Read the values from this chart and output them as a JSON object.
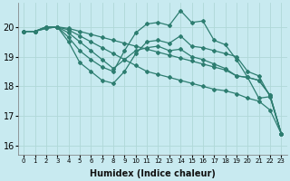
{
  "xlabel": "Humidex (Indice chaleur)",
  "ylabel": "",
  "bg_color": "#c8eaf0",
  "line_color": "#2d7d70",
  "grid_color": "#b0d8d8",
  "xlim": [
    -0.5,
    23.5
  ],
  "ylim": [
    15.7,
    20.8
  ],
  "xticks": [
    0,
    1,
    2,
    3,
    4,
    5,
    6,
    7,
    8,
    9,
    10,
    11,
    12,
    13,
    14,
    15,
    16,
    17,
    18,
    19,
    20,
    21,
    22,
    23
  ],
  "yticks": [
    16,
    17,
    18,
    19,
    20
  ],
  "lines": [
    [
      19.85,
      19.85,
      20.0,
      20.0,
      19.95,
      19.85,
      19.75,
      19.65,
      19.55,
      19.45,
      19.35,
      19.25,
      19.15,
      19.05,
      18.95,
      18.85,
      18.75,
      18.65,
      18.55,
      18.35,
      18.3,
      18.2,
      17.7,
      16.4
    ],
    [
      19.85,
      19.85,
      20.0,
      20.0,
      19.9,
      19.7,
      19.5,
      19.3,
      19.1,
      18.9,
      18.7,
      18.5,
      18.4,
      18.3,
      18.2,
      18.1,
      18.0,
      17.9,
      17.85,
      17.75,
      17.6,
      17.5,
      17.2,
      16.4
    ],
    [
      19.85,
      19.85,
      20.0,
      20.0,
      19.8,
      19.5,
      19.2,
      18.9,
      18.6,
      18.9,
      19.2,
      19.3,
      19.35,
      19.2,
      19.25,
      19.0,
      18.9,
      18.75,
      18.6,
      18.35,
      18.3,
      18.2,
      17.7,
      16.4
    ],
    [
      19.85,
      19.85,
      19.95,
      20.0,
      19.65,
      19.2,
      18.9,
      18.65,
      18.5,
      19.2,
      19.8,
      20.1,
      20.15,
      20.05,
      20.55,
      20.15,
      20.2,
      19.55,
      19.4,
      18.9,
      18.3,
      17.6,
      17.65,
      16.4
    ],
    [
      19.85,
      19.85,
      19.95,
      20.0,
      19.5,
      18.8,
      18.5,
      18.2,
      18.1,
      18.5,
      19.1,
      19.5,
      19.55,
      19.45,
      19.7,
      19.35,
      19.3,
      19.2,
      19.1,
      19.0,
      18.5,
      18.35,
      17.65,
      16.4
    ]
  ]
}
